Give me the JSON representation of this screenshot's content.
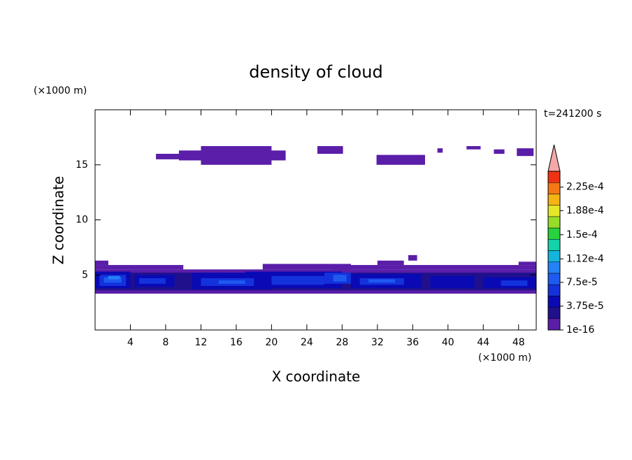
{
  "chart_data": {
    "type": "contour",
    "title": "density of cloud",
    "xlabel": "X coordinate",
    "ylabel": "Z coordinate",
    "xunit": "(×1000 m)",
    "yunit": "(×1000 m)",
    "time_label": "t=241200 s",
    "xlim": [
      0,
      50
    ],
    "ylim": [
      0,
      20
    ],
    "xticks": [
      4,
      8,
      12,
      16,
      20,
      24,
      28,
      32,
      36,
      40,
      44,
      48
    ],
    "yticks": [
      5,
      10,
      15
    ],
    "clim": [
      1e-16,
      0.00025
    ],
    "colors": [
      "#5a1ea8",
      "#20108c",
      "#0a0ab4",
      "#1432dc",
      "#1e5af0",
      "#2382f5",
      "#14b4dc",
      "#14d2aa",
      "#28d23c",
      "#96dc28",
      "#e6e628",
      "#f5b414",
      "#f57814",
      "#f03214"
    ],
    "extend_color": "#f5a8a8",
    "colorbar_ticks": [
      {
        "value": 1e-16,
        "label": "1e-16"
      },
      {
        "value": 3.75e-05,
        "label": "3.75e-5"
      },
      {
        "value": 7.5e-05,
        "label": "7.5e-5"
      },
      {
        "value": 0.000112,
        "label": "1.12e-4"
      },
      {
        "value": 0.00015,
        "label": "1.5e-4"
      },
      {
        "value": 0.000188,
        "label": "1.88e-4"
      },
      {
        "value": 0.000225,
        "label": "2.25e-4"
      }
    ],
    "cells": [
      {
        "x": [
          6.9,
          9.8
        ],
        "z": [
          15.5,
          16.0
        ],
        "value": 1e-05
      },
      {
        "x": [
          9.5,
          21.6
        ],
        "z": [
          15.4,
          16.3
        ],
        "value": 1e-05
      },
      {
        "x": [
          12,
          20
        ],
        "z": [
          15.0,
          16.7
        ],
        "value": 1e-05
      },
      {
        "x": [
          25.2,
          28.1
        ],
        "z": [
          16.0,
          16.7
        ],
        "value": 1e-05
      },
      {
        "x": [
          31.9,
          37.4
        ],
        "z": [
          15.0,
          15.9
        ],
        "value": 1e-05
      },
      {
        "x": [
          38.8,
          39.4
        ],
        "z": [
          16.1,
          16.5
        ],
        "value": 1e-05
      },
      {
        "x": [
          42.1,
          43.7
        ],
        "z": [
          16.4,
          16.7
        ],
        "value": 1e-05
      },
      {
        "x": [
          45.2,
          46.4
        ],
        "z": [
          16.0,
          16.4
        ],
        "value": 1e-05
      },
      {
        "x": [
          47.8,
          49.7
        ],
        "z": [
          15.8,
          16.5
        ],
        "value": 1e-05
      },
      {
        "x": [
          0,
          50
        ],
        "z": [
          3.3,
          5.5
        ],
        "value": 1e-05
      },
      {
        "x": [
          0,
          10
        ],
        "z": [
          5.5,
          5.9
        ],
        "value": 1e-05
      },
      {
        "x": [
          19,
          29
        ],
        "z": [
          5.5,
          6.0
        ],
        "value": 1e-05
      },
      {
        "x": [
          27,
          50
        ],
        "z": [
          5.5,
          5.9
        ],
        "value": 1e-05
      },
      {
        "x": [
          0,
          1.5
        ],
        "z": [
          5.9,
          6.3
        ],
        "value": 1e-05
      },
      {
        "x": [
          32,
          35
        ],
        "z": [
          5.9,
          6.3
        ],
        "value": 1e-05
      },
      {
        "x": [
          35.5,
          36.5
        ],
        "z": [
          6.3,
          6.8
        ],
        "value": 1e-05
      },
      {
        "x": [
          48,
          50
        ],
        "z": [
          5.9,
          6.2
        ],
        "value": 1e-05
      },
      {
        "x": [
          0,
          50
        ],
        "z": [
          3.6,
          5.2
        ],
        "value": 2.5e-05
      },
      {
        "x": [
          0,
          4
        ],
        "z": [
          3.8,
          5.3
        ],
        "value": 4e-05
      },
      {
        "x": [
          4.5,
          9
        ],
        "z": [
          3.9,
          5.0
        ],
        "value": 4e-05
      },
      {
        "x": [
          11,
          20
        ],
        "z": [
          3.7,
          5.2
        ],
        "value": 4e-05
      },
      {
        "x": [
          17,
          28
        ],
        "z": [
          3.8,
          5.3
        ],
        "value": 4e-05
      },
      {
        "x": [
          29,
          37
        ],
        "z": [
          3.8,
          5.1
        ],
        "value": 4e-05
      },
      {
        "x": [
          38,
          43
        ],
        "z": [
          3.8,
          4.9
        ],
        "value": 4e-05
      },
      {
        "x": [
          44,
          50
        ],
        "z": [
          3.8,
          4.8
        ],
        "value": 4e-05
      },
      {
        "x": [
          0.5,
          3.5
        ],
        "z": [
          4.0,
          5.0
        ],
        "value": 6e-05
      },
      {
        "x": [
          5,
          8
        ],
        "z": [
          4.2,
          4.7
        ],
        "value": 6e-05
      },
      {
        "x": [
          12,
          18
        ],
        "z": [
          4.0,
          4.7
        ],
        "value": 6e-05
      },
      {
        "x": [
          20,
          26
        ],
        "z": [
          4.1,
          4.9
        ],
        "value": 6e-05
      },
      {
        "x": [
          26,
          29
        ],
        "z": [
          4.2,
          5.2
        ],
        "value": 6e-05
      },
      {
        "x": [
          30,
          35
        ],
        "z": [
          4.1,
          4.7
        ],
        "value": 6e-05
      },
      {
        "x": [
          46,
          49
        ],
        "z": [
          4.0,
          4.5
        ],
        "value": 6e-05
      },
      {
        "x": [
          1,
          3
        ],
        "z": [
          4.3,
          4.8
        ],
        "value": 8e-05
      },
      {
        "x": [
          14,
          17
        ],
        "z": [
          4.2,
          4.5
        ],
        "value": 8e-05
      },
      {
        "x": [
          27,
          28.5
        ],
        "z": [
          4.4,
          5.0
        ],
        "value": 8e-05
      },
      {
        "x": [
          31,
          34
        ],
        "z": [
          4.3,
          4.6
        ],
        "value": 8e-05
      },
      {
        "x": [
          1.5,
          2.8
        ],
        "z": [
          4.6,
          4.9
        ],
        "value": 0.000105
      }
    ]
  }
}
